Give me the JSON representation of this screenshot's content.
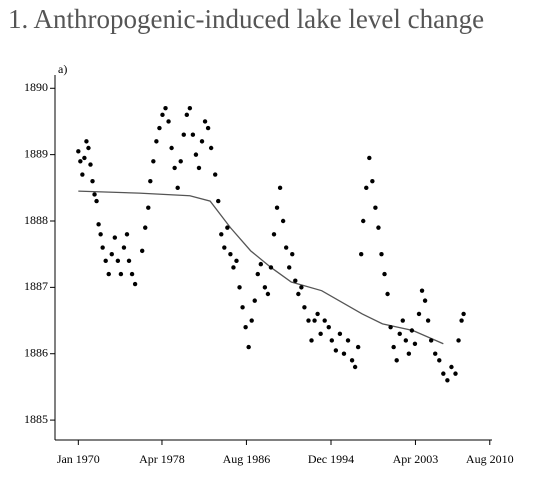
{
  "chart_data": {
    "type": "scatter",
    "title": "1. Anthropogenic-induced lake level change",
    "panel_label": "a)",
    "xlim": [
      1967.7,
      2010.8
    ],
    "ylim": [
      1884.7,
      1890.2
    ],
    "xticks": [
      {
        "value": 1970.0,
        "label": "Jan 1970"
      },
      {
        "value": 1978.25,
        "label": "Apr 1978"
      },
      {
        "value": 1986.58,
        "label": "Aug 1986"
      },
      {
        "value": 1994.92,
        "label": "Dec 1994"
      },
      {
        "value": 2003.25,
        "label": "Apr 2003"
      },
      {
        "value": 2010.58,
        "label": "Aug 2010"
      }
    ],
    "yticks": [
      1885,
      1886,
      1887,
      1888,
      1889,
      1890
    ],
    "points": {
      "color": "#000000",
      "x": [
        1970.0,
        1970.2,
        1970.4,
        1970.6,
        1970.8,
        1971.0,
        1971.2,
        1971.4,
        1971.6,
        1971.8,
        1972.0,
        1972.2,
        1972.4,
        1972.7,
        1973.0,
        1973.3,
        1973.6,
        1973.9,
        1974.2,
        1974.5,
        1974.8,
        1975.0,
        1975.3,
        1975.6,
        1976.3,
        1976.6,
        1976.9,
        1977.1,
        1977.4,
        1977.7,
        1978.0,
        1978.3,
        1978.6,
        1978.9,
        1979.2,
        1979.5,
        1979.8,
        1980.1,
        1980.4,
        1980.7,
        1981.0,
        1981.3,
        1981.6,
        1981.9,
        1982.2,
        1982.5,
        1982.8,
        1983.1,
        1983.5,
        1983.8,
        1984.1,
        1984.4,
        1984.7,
        1985.0,
        1985.3,
        1985.6,
        1985.9,
        1986.2,
        1986.5,
        1986.8,
        1987.1,
        1987.4,
        1987.7,
        1988.0,
        1988.4,
        1988.7,
        1989.0,
        1989.3,
        1989.6,
        1989.9,
        1990.2,
        1990.5,
        1990.8,
        1991.1,
        1991.4,
        1991.7,
        1992.0,
        1992.3,
        1992.7,
        1993.0,
        1993.3,
        1993.6,
        1993.9,
        1994.3,
        1994.7,
        1995.0,
        1995.4,
        1995.8,
        1996.2,
        1996.6,
        1997.0,
        1997.3,
        1997.6,
        1997.9,
        1998.1,
        1998.4,
        1998.7,
        1999.0,
        1999.3,
        1999.6,
        1999.9,
        2000.2,
        2000.5,
        2000.8,
        2001.1,
        2001.4,
        2001.7,
        2002.0,
        2002.3,
        2002.6,
        2002.9,
        2003.2,
        2003.6,
        2003.9,
        2004.2,
        2004.5,
        2004.8,
        2005.2,
        2005.6,
        2006.0,
        2006.4,
        2006.8,
        2007.2,
        2007.5,
        2007.8,
        2008.0
      ],
      "y": [
        1889.05,
        1888.9,
        1888.7,
        1888.95,
        1889.2,
        1889.1,
        1888.85,
        1888.6,
        1888.4,
        1888.3,
        1887.95,
        1887.8,
        1887.6,
        1887.4,
        1887.2,
        1887.5,
        1887.75,
        1887.4,
        1887.2,
        1887.6,
        1887.8,
        1887.4,
        1887.2,
        1887.05,
        1887.55,
        1887.9,
        1888.2,
        1888.6,
        1888.9,
        1889.2,
        1889.4,
        1889.6,
        1889.7,
        1889.5,
        1889.1,
        1888.8,
        1888.5,
        1888.9,
        1889.3,
        1889.6,
        1889.7,
        1889.3,
        1889.0,
        1888.8,
        1889.2,
        1889.5,
        1889.4,
        1889.1,
        1888.7,
        1888.3,
        1887.8,
        1887.6,
        1887.9,
        1887.5,
        1887.3,
        1887.4,
        1887.0,
        1886.7,
        1886.4,
        1886.1,
        1886.5,
        1886.8,
        1887.2,
        1887.35,
        1887.0,
        1886.9,
        1887.3,
        1887.8,
        1888.2,
        1888.5,
        1888.0,
        1887.6,
        1887.3,
        1887.5,
        1887.1,
        1886.9,
        1887.0,
        1886.7,
        1886.5,
        1886.2,
        1886.5,
        1886.6,
        1886.3,
        1886.5,
        1886.4,
        1886.2,
        1886.05,
        1886.3,
        1886.0,
        1886.2,
        1885.9,
        1885.8,
        1886.1,
        1887.5,
        1888.0,
        1888.5,
        1888.95,
        1888.6,
        1888.2,
        1887.9,
        1887.5,
        1887.2,
        1886.9,
        1886.4,
        1886.1,
        1885.9,
        1886.3,
        1886.5,
        1886.2,
        1886.0,
        1886.35,
        1886.15,
        1886.6,
        1886.95,
        1886.8,
        1886.5,
        1886.2,
        1886.0,
        1885.9,
        1885.7,
        1885.6,
        1885.8,
        1885.7,
        1886.2,
        1886.5,
        1886.6
      ]
    },
    "trend": {
      "color": "#555555",
      "x": [
        1970,
        1976,
        1981,
        1983,
        1985,
        1987,
        1989,
        1991,
        1994,
        1998,
        2000,
        2003,
        2006
      ],
      "y": [
        1888.45,
        1888.42,
        1888.38,
        1888.3,
        1887.9,
        1887.55,
        1887.3,
        1887.08,
        1886.95,
        1886.6,
        1886.45,
        1886.35,
        1886.15
      ]
    }
  }
}
